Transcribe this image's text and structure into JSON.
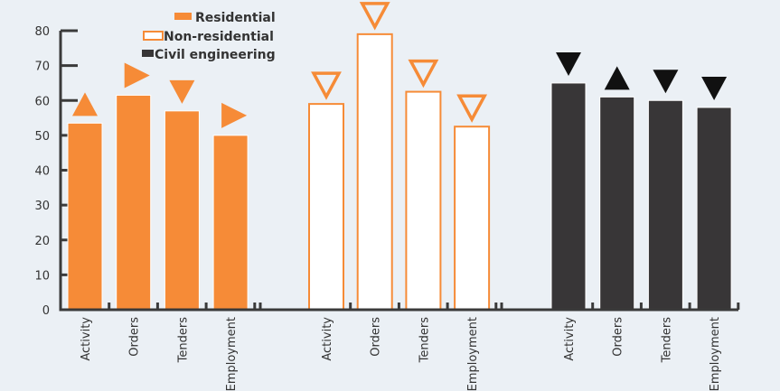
{
  "chart_data": {
    "type": "bar",
    "title": "",
    "xlabel": "",
    "ylabel": "",
    "ylim": [
      0,
      80
    ],
    "yticks": [
      "0",
      "10",
      "20",
      "30",
      "40",
      "50",
      "60",
      "70",
      "80"
    ],
    "categories": [
      "Activity",
      "Orders",
      "Tenders",
      "Employment"
    ],
    "legend_position": "top-left",
    "series": [
      {
        "name": "Residential",
        "style": "filled",
        "color": "#f68b37",
        "values": [
          53.5,
          61.5,
          57,
          50
        ],
        "trends": [
          "up",
          "right",
          "down",
          "right"
        ]
      },
      {
        "name": "Non-residential",
        "style": "outline",
        "color": "#f68b37",
        "values": [
          59,
          79,
          62.5,
          52.5
        ],
        "trends": [
          "down",
          "down",
          "down",
          "down"
        ]
      },
      {
        "name": "Civil engineering",
        "style": "filled",
        "color": "#383637",
        "values": [
          65,
          61,
          60,
          58
        ],
        "trends": [
          "down",
          "up",
          "down",
          "down"
        ]
      }
    ]
  },
  "colors": {
    "background": "#ebf0f5",
    "axis": "#3a3a3a",
    "orange": "#f68b37",
    "dark": "#383637"
  }
}
